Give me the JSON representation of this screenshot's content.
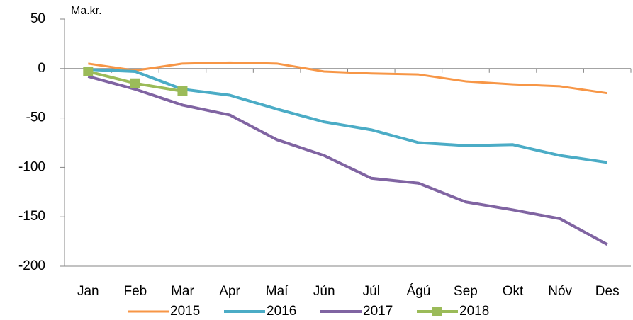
{
  "chart_data": {
    "type": "line",
    "ylabel": "Ma.kr.",
    "categories": [
      "Jan",
      "Feb",
      "Mar",
      "Apr",
      "Maí",
      "Jún",
      "Júl",
      "Ágú",
      "Sep",
      "Okt",
      "Nóv",
      "Des"
    ],
    "series": [
      {
        "name": "2015",
        "color": "#f79646",
        "values": [
          5,
          -2,
          5,
          6,
          5,
          -3,
          -5,
          -6,
          -13,
          -16,
          -18,
          -25
        ]
      },
      {
        "name": "2016",
        "color": "#4bacc6",
        "values": [
          -1,
          -3,
          -21,
          -27,
          -41,
          -54,
          -62,
          -75,
          -78,
          -77,
          -88,
          -95
        ]
      },
      {
        "name": "2017",
        "color": "#8064a2",
        "values": [
          -8,
          -21,
          -37,
          -47,
          -72,
          -88,
          -111,
          -116,
          -135,
          -143,
          -152,
          -178
        ]
      },
      {
        "name": "2018",
        "color": "#9bbb59",
        "marker": "square",
        "values": [
          -3,
          -15,
          -23,
          null,
          null,
          null,
          null,
          null,
          null,
          null,
          null,
          null
        ]
      }
    ],
    "ylim": [
      -200,
      50
    ],
    "yticks": [
      -200,
      -150,
      -100,
      -50,
      0,
      50
    ],
    "grid": false
  }
}
